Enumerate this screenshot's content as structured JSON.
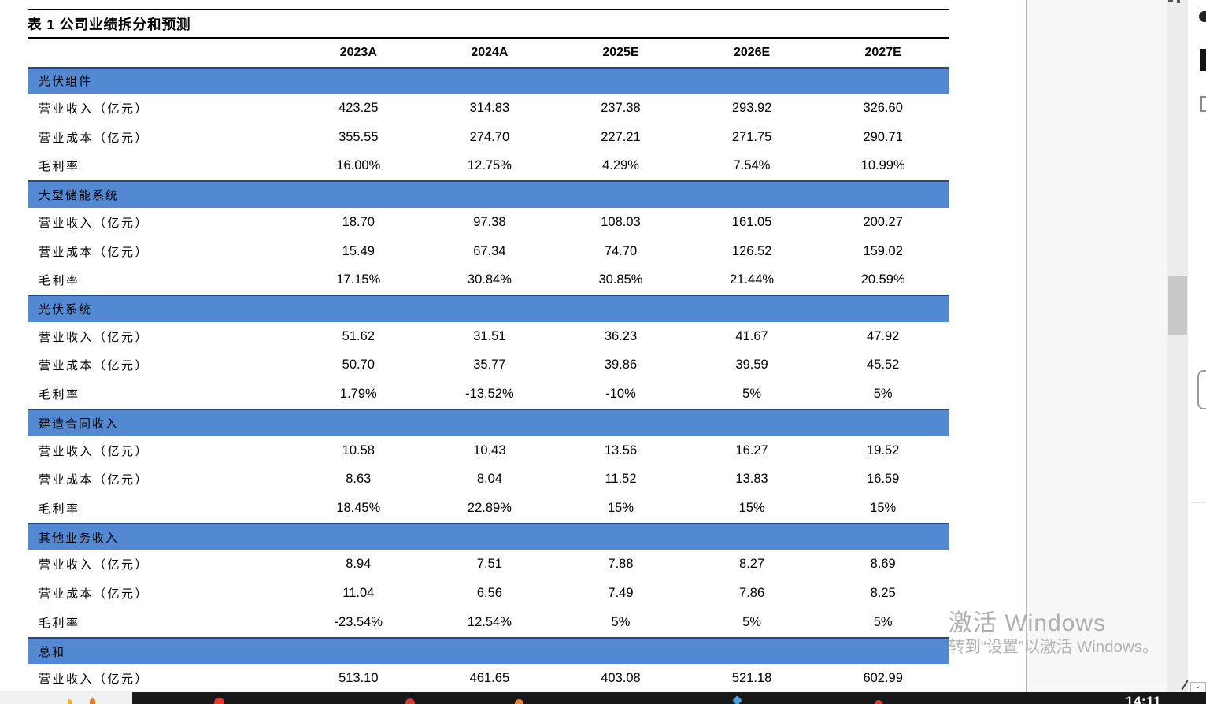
{
  "colors": {
    "section_bar_blue": "#5289d2",
    "section_bar_top_border": "#26497f",
    "taskbar_black": "#181818",
    "watermark_gray": "#9d9d9d"
  },
  "table": {
    "title": "表 1 公司业绩拆分和预测",
    "columns": [
      "2023A",
      "2024A",
      "2025E",
      "2026E",
      "2027E"
    ],
    "sections": [
      {
        "name": "光伏组件",
        "rows": [
          {
            "label": "营业收入（亿元）",
            "values": [
              "423.25",
              "314.83",
              "237.38",
              "293.92",
              "326.60"
            ]
          },
          {
            "label": "营业成本（亿元）",
            "values": [
              "355.55",
              "274.70",
              "227.21",
              "271.75",
              "290.71"
            ]
          },
          {
            "label": "毛利率",
            "values": [
              "16.00%",
              "12.75%",
              "4.29%",
              "7.54%",
              "10.99%"
            ]
          }
        ]
      },
      {
        "name": "大型储能系统",
        "rows": [
          {
            "label": "营业收入（亿元）",
            "values": [
              "18.70",
              "97.38",
              "108.03",
              "161.05",
              "200.27"
            ]
          },
          {
            "label": "营业成本（亿元）",
            "values": [
              "15.49",
              "67.34",
              "74.70",
              "126.52",
              "159.02"
            ]
          },
          {
            "label": "毛利率",
            "values": [
              "17.15%",
              "30.84%",
              "30.85%",
              "21.44%",
              "20.59%"
            ]
          }
        ]
      },
      {
        "name": "光伏系统",
        "rows": [
          {
            "label": "营业收入（亿元）",
            "values": [
              "51.62",
              "31.51",
              "36.23",
              "41.67",
              "47.92"
            ]
          },
          {
            "label": "营业成本（亿元）",
            "values": [
              "50.70",
              "35.77",
              "39.86",
              "39.59",
              "45.52"
            ]
          },
          {
            "label": "毛利率",
            "values": [
              "1.79%",
              "-13.52%",
              "-10%",
              "5%",
              "5%"
            ]
          }
        ]
      },
      {
        "name": "建造合同收入",
        "rows": [
          {
            "label": "营业收入（亿元）",
            "values": [
              "10.58",
              "10.43",
              "13.56",
              "16.27",
              "19.52"
            ]
          },
          {
            "label": "营业成本（亿元）",
            "values": [
              "8.63",
              "8.04",
              "11.52",
              "13.83",
              "16.59"
            ]
          },
          {
            "label": "毛利率",
            "values": [
              "18.45%",
              "22.89%",
              "15%",
              "15%",
              "15%"
            ]
          }
        ]
      },
      {
        "name": "其他业务收入",
        "rows": [
          {
            "label": "营业收入（亿元）",
            "values": [
              "8.94",
              "7.51",
              "7.88",
              "8.27",
              "8.69"
            ]
          },
          {
            "label": "营业成本（亿元）",
            "values": [
              "11.04",
              "6.56",
              "7.49",
              "7.86",
              "8.25"
            ]
          },
          {
            "label": "毛利率",
            "values": [
              "-23.54%",
              "12.54%",
              "5%",
              "5%",
              "5%"
            ]
          }
        ]
      },
      {
        "name": "总和",
        "rows": [
          {
            "label": "营业收入（亿元）",
            "values": [
              "513.10",
              "461.65",
              "403.08",
              "521.18",
              "602.99"
            ]
          }
        ]
      }
    ]
  },
  "watermark": {
    "line1": "激活 Windows",
    "line2": "转到“设置”以激活 Windows。"
  },
  "taskbar": {
    "time": "14:11"
  },
  "icons": {
    "caret_down": "⌄"
  }
}
